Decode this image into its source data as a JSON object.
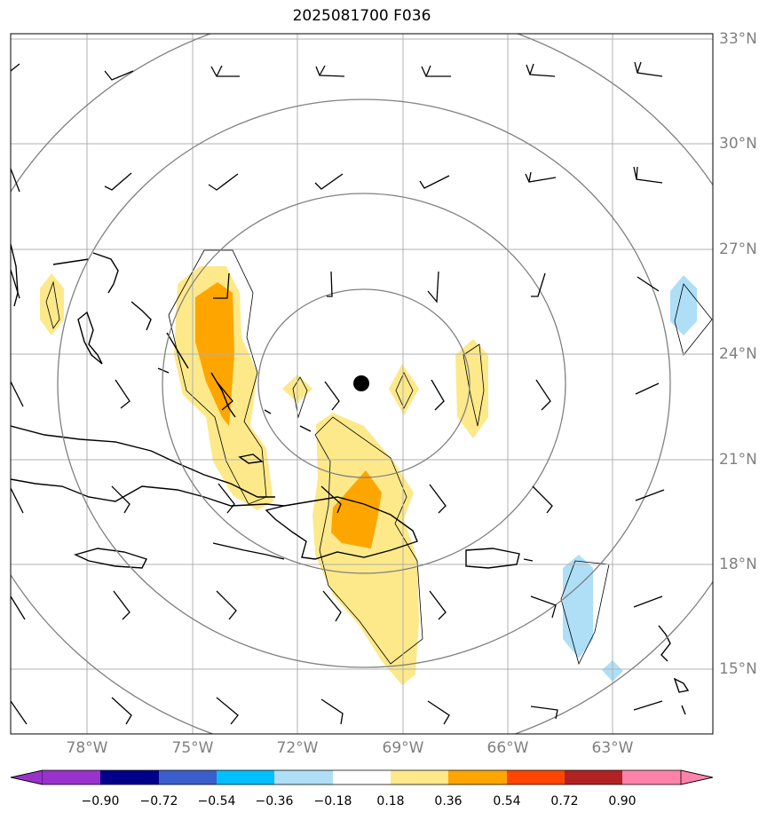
{
  "title": "2025081700 F036",
  "map": {
    "center_marker": "storm-center-dot",
    "lat_ticks": [
      "33°N",
      "30°N",
      "27°N",
      "24°N",
      "21°N",
      "18°N",
      "15°N"
    ],
    "lon_ticks": [
      "78°W",
      "75°W",
      "72°W",
      "69°W",
      "66°W",
      "63°W"
    ],
    "colors": {
      "coastline": "#000000",
      "gridline": "#b0b0b0",
      "range_ring": "#808080",
      "positive_light": "#fde98a",
      "positive_mid": "#ffa500",
      "negative_light": "#aedff7"
    }
  },
  "colorbar": {
    "labels": [
      "−0.90",
      "−0.72",
      "−0.54",
      "−0.36",
      "−0.18",
      "0.18",
      "0.36",
      "0.54",
      "0.72",
      "0.90"
    ],
    "colors": [
      "#9932cc",
      "#00008b",
      "#3a5fcd",
      "#00bfff",
      "#aedff7",
      "#ffffff",
      "#fde98a",
      "#ffa500",
      "#ff4500",
      "#b22222",
      "#ff82ab"
    ]
  }
}
